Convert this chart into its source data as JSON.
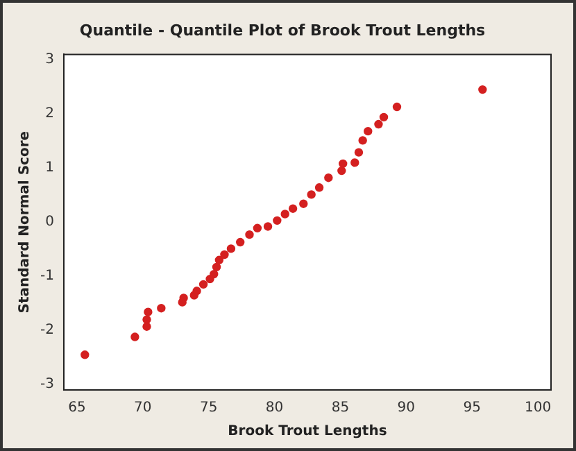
{
  "chart_data": {
    "type": "scatter",
    "title": "Quantile - Quantile Plot of Brook Trout Lengths",
    "xlabel": "Brook Trout Lengths",
    "ylabel": "Standard Normal Score",
    "xlim": [
      64,
      101
    ],
    "ylim": [
      -3.1,
      3.1
    ],
    "xticks": [
      65,
      70,
      75,
      80,
      85,
      90,
      95,
      100
    ],
    "yticks": [
      -3,
      -2,
      -1,
      0,
      1,
      2,
      3
    ],
    "grid": false,
    "legend": false,
    "marker": "circle",
    "series": [
      {
        "color": "#d42020",
        "x": [
          65.6,
          69.4,
          70.3,
          70.3,
          70.4,
          71.4,
          73.0,
          73.1,
          73.9,
          74.1,
          74.6,
          75.1,
          75.4,
          75.6,
          75.8,
          76.2,
          76.7,
          77.4,
          78.1,
          78.7,
          79.5,
          80.2,
          80.8,
          81.4,
          82.2,
          82.8,
          83.4,
          84.1,
          85.1,
          85.2,
          86.1,
          86.4,
          86.7,
          87.1,
          87.9,
          88.3,
          89.3,
          95.8
        ],
        "values": [
          -2.45,
          -2.12,
          -1.93,
          -1.8,
          -1.66,
          -1.59,
          -1.48,
          -1.4,
          -1.35,
          -1.27,
          -1.15,
          -1.05,
          -0.96,
          -0.83,
          -0.7,
          -0.6,
          -0.49,
          -0.37,
          -0.23,
          -0.11,
          -0.08,
          0.03,
          0.15,
          0.25,
          0.34,
          0.51,
          0.64,
          0.82,
          0.95,
          1.08,
          1.1,
          1.29,
          1.51,
          1.68,
          1.81,
          1.94,
          2.13,
          2.45
        ]
      }
    ]
  }
}
